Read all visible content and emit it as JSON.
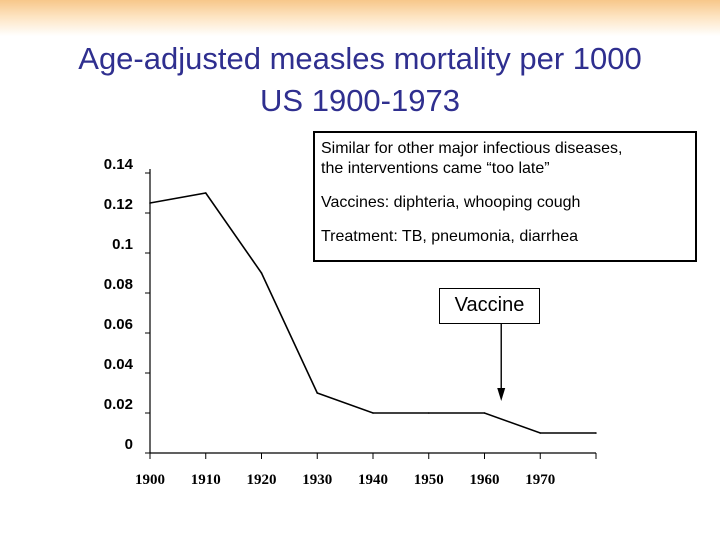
{
  "title": {
    "line1": "Age-adjusted measles mortality per 1000",
    "line2": "US 1900-1973"
  },
  "notes": {
    "line1": "Similar for other major infectious diseases,",
    "line2": "the interventions came “too late”",
    "line3": "Vaccines: diphteria, whooping cough",
    "line4": "Treatment: TB, pneumonia, diarrhea"
  },
  "annotation": {
    "label": "Vaccine",
    "x": 1963
  },
  "chart_data": {
    "type": "line",
    "title": "Age-adjusted measles mortality per 1000 US 1900-1973",
    "xlabel": "",
    "ylabel": "",
    "x": [
      1900,
      1910,
      1920,
      1930,
      1940,
      1950,
      1960,
      1970,
      1980
    ],
    "series": [
      {
        "values": [
          0.125,
          0.13,
          0.09,
          0.03,
          0.02,
          0.02,
          0.02,
          0.01,
          0.01
        ]
      }
    ],
    "xticks": [
      "1900",
      "1910",
      "1920",
      "1930",
      "1940",
      "1950",
      "1960",
      "1970"
    ],
    "yticks": [
      "0",
      "0.02",
      "0.04",
      "0.06",
      "0.08",
      "0.1",
      "0.12",
      "0.14"
    ],
    "yticks_values": [
      0,
      0.02,
      0.04,
      0.06,
      0.08,
      0.1,
      0.12,
      0.14
    ],
    "ylim": [
      0,
      0.15
    ],
    "xlim": [
      1900,
      1980
    ],
    "grid": false,
    "colors": {
      "line": "#000000",
      "axis": "#000000"
    }
  }
}
